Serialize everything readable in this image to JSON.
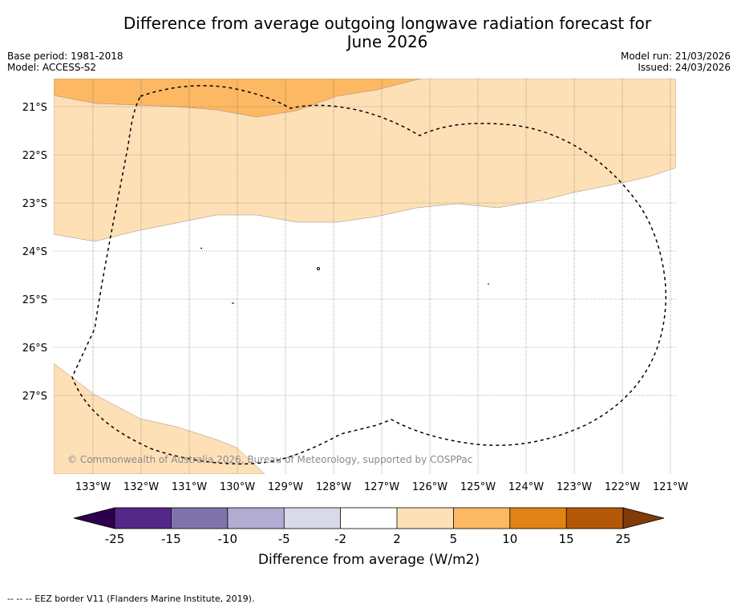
{
  "title": {
    "line1": "Difference from average outgoing longwave radiation forecast for",
    "line2": "June 2026"
  },
  "info": {
    "base_period": "Base period: 1981-2018",
    "model": "Model: ACCESS-S2",
    "model_run": "Model run: 21/03/2026",
    "issued": "Issued: 24/03/2026"
  },
  "map": {
    "lat_labels": [
      "21°S",
      "22°S",
      "23°S",
      "24°S",
      "25°S",
      "26°S",
      "27°S"
    ],
    "lon_labels": [
      "133°W",
      "132°W",
      "131°W",
      "130°W",
      "129°W",
      "128°W",
      "127°W",
      "126°W",
      "125°W",
      "124°W",
      "123°W",
      "122°W",
      "121°W"
    ],
    "copyright": "© Commonwealth of Australia 2026, Bureau of Meteorology, supported by COSPPac"
  },
  "colorbar": {
    "ticks": [
      "-25",
      "-15",
      "-10",
      "-5",
      "-2",
      "2",
      "5",
      "10",
      "15",
      "25"
    ],
    "colors": [
      "#2d004b",
      "#542788",
      "#8073ac",
      "#b2abd2",
      "#d8daeb",
      "#ffffff",
      "#fee0b6",
      "#fdb863",
      "#e08214",
      "#b35806",
      "#7f3b08"
    ],
    "label": "Difference from average (W/m2)"
  },
  "legend": {
    "eez": "--  --  -- EEZ border V11 (Flanders Marine Institute, 2019)."
  }
}
